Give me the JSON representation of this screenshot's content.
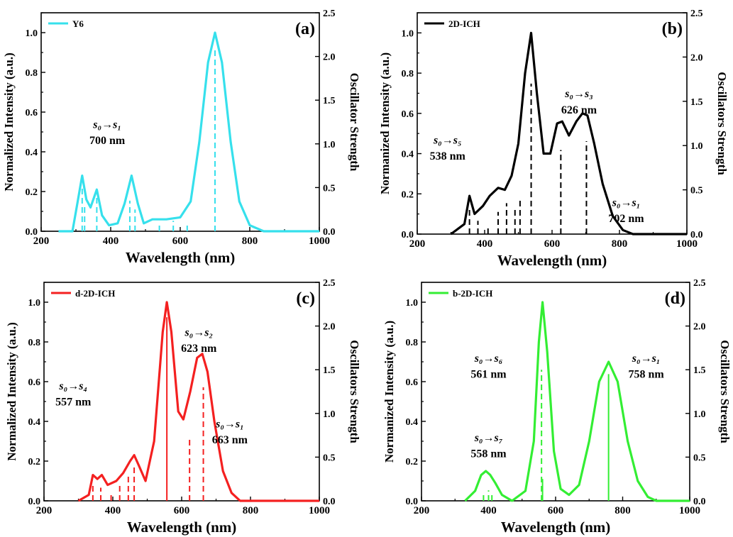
{
  "chart_data": [
    {
      "type": "line",
      "panel_label": "(a)",
      "color": "#36e0ec",
      "legend": "Y6",
      "xlabel": "Wavelength (nm)",
      "ylabel": "Normalized Intensity (a.u.)",
      "y2label": "Oscillator Strength",
      "xlim": [
        200,
        1000
      ],
      "ylim": [
        0,
        1.1
      ],
      "y2lim": [
        0,
        2.5
      ],
      "xticks": [
        "200",
        "400",
        "600",
        "800",
        "1000"
      ],
      "yticks": [
        "0.0",
        "0.2",
        "0.4",
        "0.6",
        "0.8",
        "1.0"
      ],
      "y2ticks": [
        "0.0",
        "0.5",
        "1.0",
        "1.5",
        "2.0",
        "2.5"
      ],
      "peaks": [
        {
          "x": 318,
          "h": 0.26,
          "w": 12
        },
        {
          "x": 360,
          "h": 0.2,
          "w": 11
        },
        {
          "x": 460,
          "h": 0.27,
          "w": 16
        },
        {
          "x": 560,
          "h": 0.055,
          "w": 40
        },
        {
          "x": 700,
          "h": 1.0,
          "w": 38
        }
      ],
      "spectrum": [
        [
          250,
          0
        ],
        [
          290,
          0
        ],
        [
          305,
          0.15
        ],
        [
          318,
          0.28
        ],
        [
          330,
          0.16
        ],
        [
          342,
          0.12
        ],
        [
          360,
          0.21
        ],
        [
          375,
          0.08
        ],
        [
          395,
          0.03
        ],
        [
          420,
          0.04
        ],
        [
          440,
          0.14
        ],
        [
          460,
          0.28
        ],
        [
          478,
          0.14
        ],
        [
          495,
          0.04
        ],
        [
          520,
          0.06
        ],
        [
          560,
          0.06
        ],
        [
          600,
          0.07
        ],
        [
          630,
          0.15
        ],
        [
          655,
          0.45
        ],
        [
          680,
          0.85
        ],
        [
          700,
          1.0
        ],
        [
          720,
          0.85
        ],
        [
          745,
          0.45
        ],
        [
          770,
          0.15
        ],
        [
          800,
          0.03
        ],
        [
          840,
          0
        ],
        [
          1000,
          0
        ]
      ],
      "sticks": [
        {
          "x": 700,
          "f": 2.1,
          "style": "dash"
        },
        {
          "x": 318,
          "f": 0.5,
          "style": "dash"
        },
        {
          "x": 325,
          "f": 0.3,
          "style": "dash"
        },
        {
          "x": 360,
          "f": 0.4,
          "style": "dash"
        },
        {
          "x": 455,
          "f": 0.35,
          "style": "dash"
        },
        {
          "x": 470,
          "f": 0.25,
          "style": "dash"
        },
        {
          "x": 540,
          "f": 0.1,
          "style": "dash"
        },
        {
          "x": 580,
          "f": 0.12,
          "style": "dash"
        },
        {
          "x": 620,
          "f": 0.08,
          "style": "dash"
        }
      ],
      "annotations": [
        {
          "text": "s₀→s₁",
          "x": 390,
          "y": 0.52
        },
        {
          "text": "700 nm",
          "x": 390,
          "y": 0.44
        }
      ]
    },
    {
      "type": "line",
      "panel_label": "(b)",
      "color": "#000000",
      "legend": "2D-ICH",
      "xlabel": "Wavelength (nm)",
      "ylabel": "Normanized Intensity (a.u.)",
      "y2label": "Oscillators Strength",
      "xlim": [
        200,
        1000
      ],
      "ylim": [
        0,
        1.1
      ],
      "y2lim": [
        0,
        2.5
      ],
      "xticks": [
        "200",
        "400",
        "600",
        "800",
        "1000"
      ],
      "yticks": [
        "0.0",
        "0.2",
        "0.4",
        "0.6",
        "0.8",
        "1.0"
      ],
      "y2ticks": [
        "0.0",
        "0.5",
        "1.0",
        "1.5",
        "2.0",
        "2.5"
      ],
      "spectrum": [
        [
          300,
          0
        ],
        [
          340,
          0.05
        ],
        [
          355,
          0.19
        ],
        [
          370,
          0.1
        ],
        [
          395,
          0.14
        ],
        [
          415,
          0.19
        ],
        [
          440,
          0.23
        ],
        [
          460,
          0.22
        ],
        [
          480,
          0.29
        ],
        [
          500,
          0.45
        ],
        [
          520,
          0.8
        ],
        [
          538,
          1.0
        ],
        [
          555,
          0.7
        ],
        [
          575,
          0.4
        ],
        [
          595,
          0.4
        ],
        [
          615,
          0.55
        ],
        [
          630,
          0.56
        ],
        [
          650,
          0.49
        ],
        [
          672,
          0.56
        ],
        [
          690,
          0.6
        ],
        [
          705,
          0.59
        ],
        [
          725,
          0.45
        ],
        [
          750,
          0.25
        ],
        [
          780,
          0.09
        ],
        [
          810,
          0.02
        ],
        [
          840,
          0
        ],
        [
          1000,
          0
        ]
      ],
      "sticks": [
        {
          "x": 538,
          "f": 1.7,
          "style": "dash"
        },
        {
          "x": 626,
          "f": 0.95,
          "style": "dash"
        },
        {
          "x": 702,
          "f": 1.05,
          "style": "dash"
        },
        {
          "x": 355,
          "f": 0.3,
          "style": "dash"
        },
        {
          "x": 380,
          "f": 0.15,
          "style": "dash"
        },
        {
          "x": 410,
          "f": 0.1,
          "style": "dash"
        },
        {
          "x": 440,
          "f": 0.25,
          "style": "dash"
        },
        {
          "x": 465,
          "f": 0.35,
          "style": "dash"
        },
        {
          "x": 490,
          "f": 0.3,
          "style": "dash"
        },
        {
          "x": 505,
          "f": 0.4,
          "style": "dash"
        }
      ],
      "annotations": [
        {
          "text": "s₀→s₅",
          "x": 290,
          "y": 0.45
        },
        {
          "text": "538 nm",
          "x": 290,
          "y": 0.37
        },
        {
          "text": "s₀→s₃",
          "x": 680,
          "y": 0.68
        },
        {
          "text": "626 nm",
          "x": 680,
          "y": 0.6
        },
        {
          "text": "s₀→s₁",
          "x": 820,
          "y": 0.14
        },
        {
          "text": "702 nm",
          "x": 820,
          "y": 0.06
        }
      ]
    },
    {
      "type": "line",
      "panel_label": "(c)",
      "color": "#f42020",
      "legend": "d-2D-ICH",
      "xlabel": "Wavelength (nm)",
      "ylabel": "Normalized Intensity (a.u.)",
      "y2label": "Oscillators Strength",
      "xlim": [
        200,
        1000
      ],
      "ylim": [
        0,
        1.1
      ],
      "y2lim": [
        0,
        2.5
      ],
      "xticks": [
        "200",
        "400",
        "600",
        "800",
        "1000"
      ],
      "yticks": [
        "0.0",
        "0.2",
        "0.4",
        "0.6",
        "0.8",
        "1.0"
      ],
      "y2ticks": [
        "0.0",
        "0.5",
        "1.0",
        "1.5",
        "2.0",
        "2.5"
      ],
      "spectrum": [
        [
          300,
          0
        ],
        [
          330,
          0.03
        ],
        [
          342,
          0.13
        ],
        [
          355,
          0.11
        ],
        [
          368,
          0.13
        ],
        [
          385,
          0.08
        ],
        [
          410,
          0.1
        ],
        [
          430,
          0.14
        ],
        [
          450,
          0.2
        ],
        [
          462,
          0.23
        ],
        [
          475,
          0.18
        ],
        [
          495,
          0.1
        ],
        [
          520,
          0.3
        ],
        [
          545,
          0.85
        ],
        [
          557,
          1.0
        ],
        [
          570,
          0.85
        ],
        [
          590,
          0.45
        ],
        [
          605,
          0.41
        ],
        [
          625,
          0.55
        ],
        [
          645,
          0.72
        ],
        [
          660,
          0.74
        ],
        [
          675,
          0.65
        ],
        [
          695,
          0.4
        ],
        [
          720,
          0.15
        ],
        [
          745,
          0.04
        ],
        [
          770,
          0
        ],
        [
          1000,
          0
        ]
      ],
      "sticks": [
        {
          "x": 557,
          "f": 2.1,
          "style": "solid"
        },
        {
          "x": 623,
          "f": 0.7,
          "style": "dash"
        },
        {
          "x": 663,
          "f": 1.3,
          "style": "dash"
        },
        {
          "x": 342,
          "f": 0.2,
          "style": "dash"
        },
        {
          "x": 365,
          "f": 0.15,
          "style": "dash"
        },
        {
          "x": 395,
          "f": 0.1,
          "style": "dash"
        },
        {
          "x": 420,
          "f": 0.2,
          "style": "dash"
        },
        {
          "x": 445,
          "f": 0.3,
          "style": "dash"
        },
        {
          "x": 462,
          "f": 0.4,
          "style": "dash"
        }
      ],
      "annotations": [
        {
          "text": "s₀→s₄",
          "x": 285,
          "y": 0.56
        },
        {
          "text": "557 nm",
          "x": 285,
          "y": 0.48
        },
        {
          "text": "s₀→s₂",
          "x": 650,
          "y": 0.83
        },
        {
          "text": "623 nm",
          "x": 650,
          "y": 0.75
        },
        {
          "text": "s₀→s₁",
          "x": 740,
          "y": 0.37
        },
        {
          "text": "663 nm",
          "x": 740,
          "y": 0.29
        }
      ]
    },
    {
      "type": "line",
      "panel_label": "(d)",
      "color": "#33ee33",
      "legend": "b-2D-ICH",
      "xlabel": "Wavelength (nm)",
      "ylabel": "Normanized Intensity (a.u.)",
      "y2label": "Oscillators Strength",
      "xlim": [
        200,
        1000
      ],
      "ylim": [
        0,
        1.1
      ],
      "y2lim": [
        0,
        2.5
      ],
      "xticks": [
        "200",
        "400",
        "600",
        "800",
        "1000"
      ],
      "yticks": [
        "0.0",
        "0.2",
        "0.4",
        "0.6",
        "0.8",
        "1.0"
      ],
      "y2ticks": [
        "0.0",
        "0.5",
        "1.0",
        "1.5",
        "2.0",
        "2.5"
      ],
      "spectrum": [
        [
          330,
          0
        ],
        [
          360,
          0.05
        ],
        [
          378,
          0.13
        ],
        [
          392,
          0.15
        ],
        [
          405,
          0.13
        ],
        [
          420,
          0.09
        ],
        [
          440,
          0.03
        ],
        [
          470,
          0
        ],
        [
          510,
          0.05
        ],
        [
          535,
          0.3
        ],
        [
          550,
          0.8
        ],
        [
          561,
          1.0
        ],
        [
          575,
          0.75
        ],
        [
          595,
          0.25
        ],
        [
          615,
          0.06
        ],
        [
          640,
          0.03
        ],
        [
          670,
          0.08
        ],
        [
          700,
          0.3
        ],
        [
          730,
          0.6
        ],
        [
          758,
          0.7
        ],
        [
          785,
          0.6
        ],
        [
          815,
          0.3
        ],
        [
          845,
          0.1
        ],
        [
          875,
          0.02
        ],
        [
          900,
          0
        ],
        [
          1000,
          0
        ]
      ],
      "sticks": [
        {
          "x": 558,
          "f": 1.5,
          "style": "dash"
        },
        {
          "x": 561,
          "f": 0.25,
          "style": "solid"
        },
        {
          "x": 758,
          "f": 1.45,
          "style": "solid"
        },
        {
          "x": 385,
          "f": 0.1,
          "style": "dash"
        },
        {
          "x": 400,
          "f": 0.12,
          "style": "dash"
        },
        {
          "x": 410,
          "f": 0.08,
          "style": "dash"
        }
      ],
      "annotations": [
        {
          "text": "s₀→s₆",
          "x": 400,
          "y": 0.7
        },
        {
          "text": "561 nm",
          "x": 400,
          "y": 0.62
        },
        {
          "text": "s₀→s₇",
          "x": 400,
          "y": 0.3
        },
        {
          "text": "558 nm",
          "x": 400,
          "y": 0.22
        },
        {
          "text": "s₀→s₁",
          "x": 870,
          "y": 0.7
        },
        {
          "text": "758 nm",
          "x": 870,
          "y": 0.62
        }
      ]
    }
  ]
}
